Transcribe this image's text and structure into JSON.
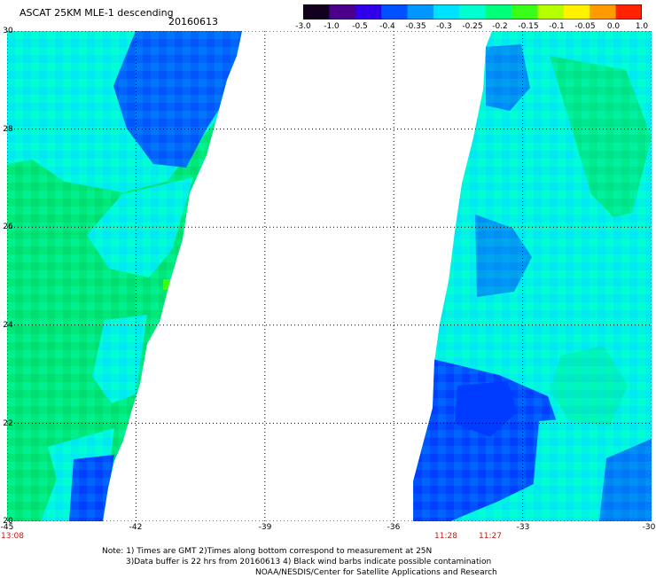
{
  "header": {
    "title": "ASCAT 25KM MLE-1 descending",
    "date": "20160613"
  },
  "colorbar": {
    "labels": [
      "-3.0",
      "-1.0",
      "-0.5",
      "-0.4",
      "-0.35",
      "-0.3",
      "-0.25",
      "-0.2",
      "-0.15",
      "-0.1",
      "-0.05",
      "0.0",
      "1.0"
    ],
    "colors": [
      "#12001f",
      "#4a0088",
      "#2f00e8",
      "#0051ff",
      "#0098ff",
      "#00e0ff",
      "#00ffd0",
      "#00ff7a",
      "#39ff18",
      "#b5ff00",
      "#fff100",
      "#ff9a00",
      "#ff2200"
    ]
  },
  "map": {
    "lat_labels": [
      "30",
      "28",
      "26",
      "24",
      "22",
      "20"
    ],
    "lon_labels": [
      "-45",
      "-42",
      "-39",
      "-36",
      "-33",
      "-30"
    ],
    "time_labels": [
      "13:08",
      "11:28",
      "11:27"
    ],
    "colors": {
      "green": "#00e77a",
      "cyan": "#00f4df",
      "blue": "#0052ff",
      "grid": "#000000",
      "time": "#c11818"
    }
  },
  "notes": {
    "line1": "Note: 1) Times are GMT 2)Times along bottom correspond to measurement at 25N",
    "line2": "3)Data buffer is 22 hrs from 20160613 4) Black wind barbs indicate possible contamination",
    "line3": "NOAA/NESDIS/Center for Satellite Applications and Research"
  }
}
